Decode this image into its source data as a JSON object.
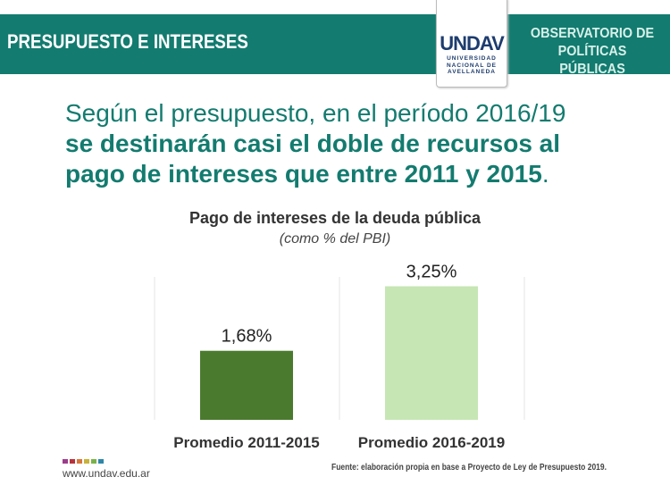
{
  "header": {
    "title": "PRESUPUESTO E INTERESES",
    "logo_text": "UNDAV",
    "logo_sub": [
      "UNIVERSIDAD",
      "NACIONAL DE",
      "AVELLANEDA"
    ],
    "observatorio": [
      "OBSERVATORIO DE",
      "POLÍTICAS PÚBLICAS"
    ]
  },
  "lead": {
    "line1": "Según el presupuesto, en el período 2016/19",
    "bold1": "se destinarán casi el doble de recursos al",
    "bold2": "pago de intereses que entre 2011 y 2015",
    "period": "."
  },
  "chart_data": {
    "type": "bar",
    "title": "Pago de intereses de la deuda pública",
    "subtitle": "(como % del PBI)",
    "categories": [
      "Promedio 2011-2015",
      "Promedio 2016-2019"
    ],
    "values": [
      1.68,
      3.25
    ],
    "labels": [
      "1,68%",
      "3,25%"
    ],
    "colors": [
      "#4a7a2e",
      "#c6e6b4"
    ],
    "ylim": [
      0,
      3.5
    ],
    "grid": false
  },
  "footer": {
    "url": "www.undav.edu.ar",
    "source": "Fuente: elaboración propia en base a Proyecto de Ley de Presupuesto 2019.",
    "dot_colors": [
      "#9b3c8c",
      "#b8313b",
      "#d9773a",
      "#c9b23a",
      "#7ab24a",
      "#2f86a8"
    ]
  }
}
